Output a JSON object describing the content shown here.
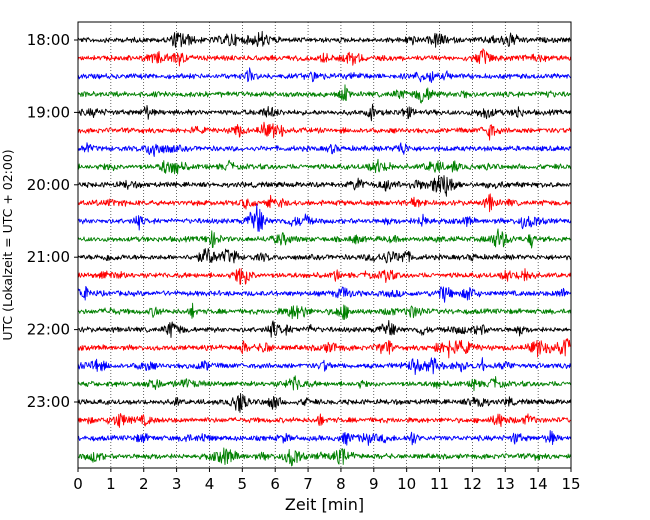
{
  "chart_data": {
    "type": "line",
    "title": "",
    "xlabel": "Zeit  [min]",
    "ylabel": "UTC (Lokalzeit = UTC + 02:00)",
    "xlim": [
      0,
      15
    ],
    "x_ticks": [
      0,
      1,
      2,
      3,
      4,
      5,
      6,
      7,
      8,
      9,
      10,
      11,
      12,
      13,
      14,
      15
    ],
    "y_tick_labels": [
      "18:00",
      "19:00",
      "20:00",
      "21:00",
      "22:00",
      "23:00"
    ],
    "grid": "vertical dotted lines at each minute",
    "legend": "none",
    "trace_interval_minutes": 15,
    "trace_colors": [
      "#000000",
      "#ff0000",
      "#0000ff",
      "#008000"
    ],
    "traces": [
      {
        "start": "18:00",
        "color": "#000000"
      },
      {
        "start": "18:15",
        "color": "#ff0000"
      },
      {
        "start": "18:30",
        "color": "#0000ff"
      },
      {
        "start": "18:45",
        "color": "#008000"
      },
      {
        "start": "19:00",
        "color": "#000000"
      },
      {
        "start": "19:15",
        "color": "#ff0000"
      },
      {
        "start": "19:30",
        "color": "#0000ff"
      },
      {
        "start": "19:45",
        "color": "#008000"
      },
      {
        "start": "20:00",
        "color": "#000000"
      },
      {
        "start": "20:15",
        "color": "#ff0000"
      },
      {
        "start": "20:30",
        "color": "#0000ff"
      },
      {
        "start": "20:45",
        "color": "#008000"
      },
      {
        "start": "21:00",
        "color": "#000000"
      },
      {
        "start": "21:15",
        "color": "#ff0000"
      },
      {
        "start": "21:30",
        "color": "#0000ff"
      },
      {
        "start": "21:45",
        "color": "#008000"
      },
      {
        "start": "22:00",
        "color": "#000000"
      },
      {
        "start": "22:15",
        "color": "#ff0000"
      },
      {
        "start": "22:30",
        "color": "#0000ff"
      },
      {
        "start": "22:45",
        "color": "#008000"
      },
      {
        "start": "23:00",
        "color": "#000000"
      },
      {
        "start": "23:15",
        "color": "#ff0000"
      },
      {
        "start": "23:30",
        "color": "#0000ff"
      },
      {
        "start": "23:45",
        "color": "#008000"
      }
    ]
  }
}
